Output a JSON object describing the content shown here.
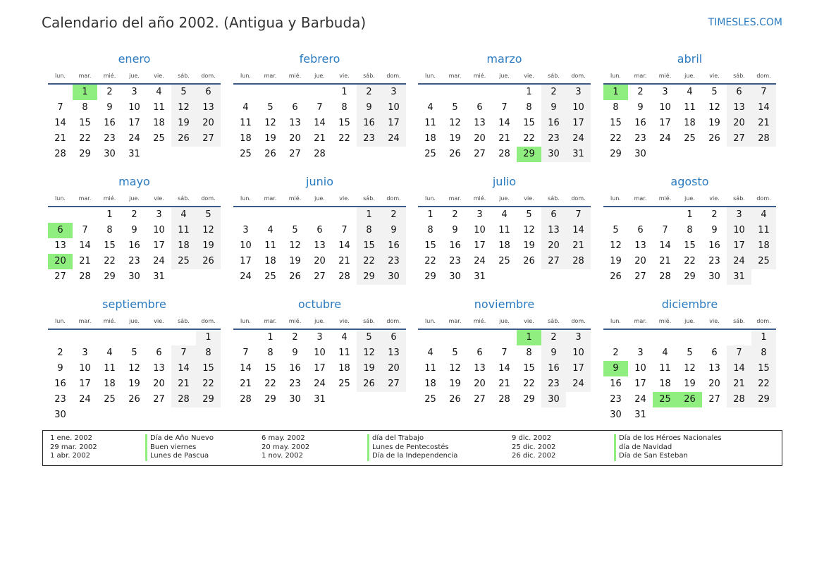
{
  "title": "Calendario del año 2002. (Antigua y Barbuda)",
  "brand": "TIMESLES.COM",
  "weekdays": [
    "lun.",
    "mar.",
    "mié.",
    "jue.",
    "vie.",
    "sáb.",
    "dom."
  ],
  "colors": {
    "accent": "#2a7bc0",
    "holiday": "#90ee80",
    "weekend": "#f2f2f2",
    "rule": "#3d5a89"
  },
  "months": [
    {
      "name": "enero",
      "start_weekday": 1,
      "days": 31,
      "holidays": [
        1
      ]
    },
    {
      "name": "febrero",
      "start_weekday": 4,
      "days": 28,
      "holidays": []
    },
    {
      "name": "marzo",
      "start_weekday": 4,
      "days": 31,
      "holidays": [
        29
      ]
    },
    {
      "name": "abril",
      "start_weekday": 0,
      "days": 30,
      "holidays": [
        1
      ]
    },
    {
      "name": "mayo",
      "start_weekday": 2,
      "days": 31,
      "holidays": [
        6,
        20
      ]
    },
    {
      "name": "junio",
      "start_weekday": 5,
      "days": 30,
      "holidays": []
    },
    {
      "name": "julio",
      "start_weekday": 0,
      "days": 31,
      "holidays": []
    },
    {
      "name": "agosto",
      "start_weekday": 3,
      "days": 31,
      "holidays": []
    },
    {
      "name": "septiembre",
      "start_weekday": 6,
      "days": 30,
      "holidays": []
    },
    {
      "name": "octubre",
      "start_weekday": 1,
      "days": 31,
      "holidays": []
    },
    {
      "name": "noviembre",
      "start_weekday": 4,
      "days": 30,
      "holidays": [
        1
      ]
    },
    {
      "name": "diciembre",
      "start_weekday": 6,
      "days": 31,
      "holidays": [
        9,
        25,
        26
      ]
    }
  ],
  "legend": [
    {
      "date": "1 ene. 2002",
      "name": "Día de Año Nuevo"
    },
    {
      "date": "29 mar. 2002",
      "name": "Buen viernes"
    },
    {
      "date": "1 abr. 2002",
      "name": "Lunes de Pascua"
    },
    {
      "date": "6 may. 2002",
      "name": "día del Trabajo"
    },
    {
      "date": "20 may. 2002",
      "name": "Lunes de Pentecostés"
    },
    {
      "date": "1 nov. 2002",
      "name": "Día de la Independencia"
    },
    {
      "date": "9 dic. 2002",
      "name": "Día de los Héroes Nacionales"
    },
    {
      "date": "25 dic. 2002",
      "name": "día de Navidad"
    },
    {
      "date": "26 dic. 2002",
      "name": "Día de San Esteban"
    }
  ]
}
